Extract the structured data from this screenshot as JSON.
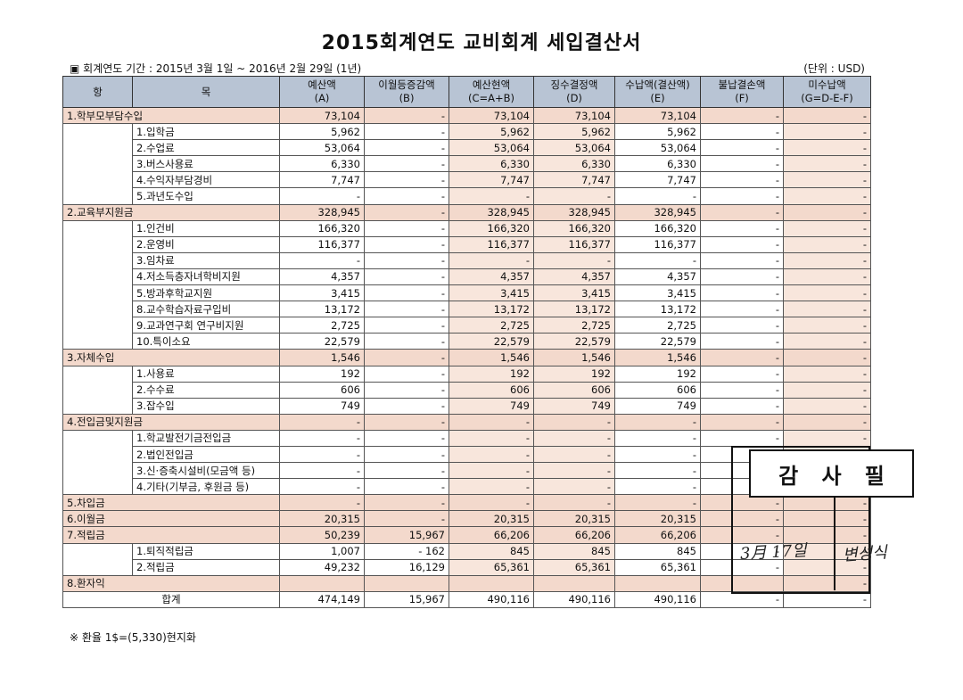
{
  "title": "2015회계연도 교비회계 세입결산서",
  "period": "▣ 회계연도 기간 : 2015년 3월 1일 ~ 2016년 2월 29일 (1년)",
  "unit": "(단위 : USD)",
  "headers": {
    "hang": "항",
    "mok": "목",
    "cols": [
      {
        "name": "예산액",
        "sub": "(A)"
      },
      {
        "name": "이월등증감액",
        "sub": "(B)"
      },
      {
        "name": "예산현액",
        "sub": "(C=A+B)"
      },
      {
        "name": "징수결정액",
        "sub": "(D)"
      },
      {
        "name": "수납액(결산액)",
        "sub": "(E)"
      },
      {
        "name": "불납결손액",
        "sub": "(F)"
      },
      {
        "name": "미수납액",
        "sub": "(G=D-E-F)"
      }
    ]
  },
  "rows": [
    {
      "type": "group",
      "label": "1.학부모부담수입",
      "v": [
        "73,104",
        "-",
        "73,104",
        "73,104",
        "73,104",
        "-",
        "-"
      ]
    },
    {
      "type": "item",
      "label": "1.입학금",
      "v": [
        "5,962",
        "-",
        "5,962",
        "5,962",
        "5,962",
        "-",
        "-"
      ]
    },
    {
      "type": "item",
      "label": "2.수업료",
      "v": [
        "53,064",
        "-",
        "53,064",
        "53,064",
        "53,064",
        "-",
        "-"
      ]
    },
    {
      "type": "item",
      "label": "3.버스사용료",
      "v": [
        "6,330",
        "-",
        "6,330",
        "6,330",
        "6,330",
        "-",
        "-"
      ]
    },
    {
      "type": "item",
      "label": "4.수익자부담경비",
      "v": [
        "7,747",
        "-",
        "7,747",
        "7,747",
        "7,747",
        "-",
        "-"
      ]
    },
    {
      "type": "item",
      "label": "5.과년도수입",
      "v": [
        "-",
        "-",
        "-",
        "-",
        "-",
        "-",
        "-"
      ]
    },
    {
      "type": "group",
      "label": "2.교육부지원금",
      "v": [
        "328,945",
        "-",
        "328,945",
        "328,945",
        "328,945",
        "-",
        "-"
      ]
    },
    {
      "type": "item",
      "label": "1.인건비",
      "v": [
        "166,320",
        "-",
        "166,320",
        "166,320",
        "166,320",
        "-",
        "-"
      ]
    },
    {
      "type": "item",
      "label": "2.운영비",
      "v": [
        "116,377",
        "-",
        "116,377",
        "116,377",
        "116,377",
        "-",
        "-"
      ]
    },
    {
      "type": "item",
      "label": "3.임차료",
      "v": [
        "-",
        "-",
        "-",
        "-",
        "-",
        "-",
        "-"
      ]
    },
    {
      "type": "item",
      "label": "4.저소득층자녀학비지원",
      "v": [
        "4,357",
        "-",
        "4,357",
        "4,357",
        "4,357",
        "-",
        "-"
      ]
    },
    {
      "type": "item",
      "label": "5.방과후학교지원",
      "v": [
        "3,415",
        "-",
        "3,415",
        "3,415",
        "3,415",
        "-",
        "-"
      ]
    },
    {
      "type": "item",
      "label": "8.교수학습자료구입비",
      "v": [
        "13,172",
        "-",
        "13,172",
        "13,172",
        "13,172",
        "-",
        "-"
      ]
    },
    {
      "type": "item",
      "label": "9.교과연구회 연구비지원",
      "v": [
        "2,725",
        "-",
        "2,725",
        "2,725",
        "2,725",
        "-",
        "-"
      ]
    },
    {
      "type": "item",
      "label": "10.특이소요",
      "v": [
        "22,579",
        "-",
        "22,579",
        "22,579",
        "22,579",
        "-",
        "-"
      ]
    },
    {
      "type": "group",
      "label": "3.자체수입",
      "v": [
        "1,546",
        "-",
        "1,546",
        "1,546",
        "1,546",
        "-",
        "-"
      ]
    },
    {
      "type": "item",
      "label": "1.사용료",
      "v": [
        "192",
        "-",
        "192",
        "192",
        "192",
        "-",
        "-"
      ]
    },
    {
      "type": "item",
      "label": "2.수수료",
      "v": [
        "606",
        "-",
        "606",
        "606",
        "606",
        "-",
        "-"
      ]
    },
    {
      "type": "item",
      "label": "3.잡수입",
      "v": [
        "749",
        "-",
        "749",
        "749",
        "749",
        "-",
        "-"
      ]
    },
    {
      "type": "group",
      "label": "4.전입금및지원금",
      "v": [
        "-",
        "-",
        "-",
        "-",
        "-",
        "-",
        "-"
      ]
    },
    {
      "type": "item",
      "label": "1.학교발전기금전입금",
      "v": [
        "-",
        "-",
        "-",
        "-",
        "-",
        "-",
        "-"
      ]
    },
    {
      "type": "item",
      "label": "2.법인전입금",
      "v": [
        "-",
        "-",
        "-",
        "-",
        "-",
        "-",
        "-"
      ]
    },
    {
      "type": "item",
      "label": "3.신·증축시설비(모금액 등)",
      "v": [
        "-",
        "-",
        "-",
        "-",
        "-",
        "-",
        "-"
      ]
    },
    {
      "type": "item",
      "label": "4.기타(기부금, 후원금 등)",
      "v": [
        "-",
        "-",
        "-",
        "-",
        "-",
        "-",
        "-"
      ]
    },
    {
      "type": "group",
      "label": "5.차입금",
      "v": [
        "-",
        "-",
        "-",
        "-",
        "-",
        "-",
        "-"
      ]
    },
    {
      "type": "group",
      "label": "6.이월금",
      "v": [
        "20,315",
        "-",
        "20,315",
        "20,315",
        "20,315",
        "-",
        "-"
      ]
    },
    {
      "type": "group",
      "label": "7.적립금",
      "v": [
        "50,239",
        "15,967",
        "66,206",
        "66,206",
        "66,206",
        "-",
        "-"
      ]
    },
    {
      "type": "item",
      "label": "1.퇴직적립금",
      "v": [
        "1,007",
        "- 162",
        "845",
        "845",
        "845",
        "-",
        "-"
      ]
    },
    {
      "type": "item",
      "label": "2.적립금",
      "v": [
        "49,232",
        "16,129",
        "65,361",
        "65,361",
        "65,361",
        "-",
        "-"
      ]
    },
    {
      "type": "group",
      "label": "8.환자익",
      "v": [
        "",
        "",
        "",
        "",
        "",
        "",
        "-"
      ]
    },
    {
      "type": "total",
      "label": "합계",
      "v": [
        "474,149",
        "15,967",
        "490,116",
        "490,116",
        "490,116",
        "-",
        "-"
      ]
    }
  ],
  "note": "※ 환율 1$=(5,330)현지화",
  "stamp": {
    "title_chars": [
      "감",
      "사",
      "필"
    ],
    "date": "3月 17일",
    "signature": "변성식"
  }
}
